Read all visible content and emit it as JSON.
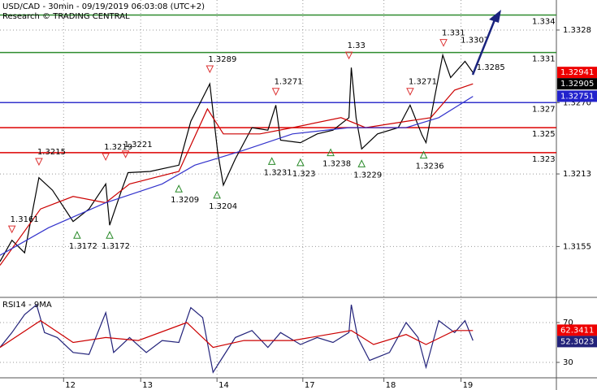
{
  "chart_data": [
    {
      "type": "line",
      "title": "USD/CAD - 30min - 09/19/2019 06:03:08 (UTC+2)",
      "subtitle": "Research © TRADING CENTRAL",
      "xlim": [
        0.2,
        7.2
      ],
      "ylim": [
        1.3115,
        1.3352
      ],
      "xticks": [
        {
          "value": 1,
          "label": "12"
        },
        {
          "value": 1.97,
          "label": "13"
        },
        {
          "value": 2.93,
          "label": "14"
        },
        {
          "value": 4.01,
          "label": "17"
        },
        {
          "value": 5.03,
          "label": "18"
        },
        {
          "value": 6.0,
          "label": "19"
        }
      ],
      "yticks": [
        1.3328,
        {
          "value": 1.327,
          "label": "1.3270"
        },
        1.3213,
        1.3155
      ],
      "grid": true,
      "series": [
        {
          "color": "#000000",
          "x": [
            0.2,
            0.35,
            0.51,
            0.69,
            0.86,
            1.12,
            1.32,
            1.53,
            1.58,
            1.73,
            1.81,
            2.09,
            2.45,
            2.6,
            2.84,
            2.94,
            3.01,
            3.16,
            3.37,
            3.57,
            3.67,
            3.73,
            3.98,
            4.19,
            4.39,
            4.59,
            4.62,
            4.68,
            4.75,
            4.95,
            5.21,
            5.36,
            5.51,
            5.56,
            5.67,
            5.77,
            5.87,
            6.05,
            6.15
          ],
          "values": [
            1.3143,
            1.316,
            1.315,
            1.321,
            1.32,
            1.3175,
            1.3185,
            1.3205,
            1.3172,
            1.32,
            1.3214,
            1.3215,
            1.322,
            1.3255,
            1.3285,
            1.323,
            1.3204,
            1.3225,
            1.325,
            1.3248,
            1.3268,
            1.324,
            1.3238,
            1.3245,
            1.3248,
            1.3258,
            1.3298,
            1.3258,
            1.3233,
            1.3245,
            1.325,
            1.3268,
            1.3244,
            1.3238,
            1.3275,
            1.3308,
            1.329,
            1.3303,
            1.3294
          ]
        },
        {
          "color": "#cc0000",
          "x": [
            0.2,
            0.71,
            1.12,
            1.53,
            1.83,
            2.45,
            2.81,
            3.01,
            3.47,
            3.88,
            4.49,
            4.8,
            5.31,
            5.62,
            5.92,
            6.15
          ],
          "values": [
            1.314,
            1.3185,
            1.3195,
            1.319,
            1.3205,
            1.3215,
            1.3265,
            1.3245,
            1.3245,
            1.325,
            1.3258,
            1.325,
            1.3255,
            1.3258,
            1.328,
            1.3285
          ]
        },
        {
          "color": "#3333cc",
          "x": [
            0.2,
            0.81,
            1.53,
            2.24,
            2.65,
            3.27,
            3.88,
            4.59,
            5.31,
            5.72,
            6.15
          ],
          "values": [
            1.3148,
            1.317,
            1.319,
            1.3205,
            1.322,
            1.3232,
            1.3245,
            1.325,
            1.325,
            1.3258,
            1.3275
          ]
        }
      ],
      "levels": [
        {
          "value": 1.334,
          "color": "#2e8b2e"
        },
        {
          "value": 1.331,
          "color": "#2e8b2e"
        },
        {
          "value": 1.327,
          "color": "#3333cc"
        },
        {
          "value": 1.325,
          "color": "#dd0000"
        },
        {
          "value": 1.323,
          "color": "#dd0000"
        }
      ],
      "annotations": [
        {
          "x": 0.35,
          "value": 1.3161,
          "kind": "high"
        },
        {
          "x": 0.69,
          "value": 1.3215,
          "kind": "high"
        },
        {
          "x": 1.17,
          "value": 1.3172,
          "kind": "low"
        },
        {
          "x": 1.53,
          "value": 1.3219,
          "kind": "high"
        },
        {
          "x": 1.58,
          "value": 1.3172,
          "kind": "low"
        },
        {
          "x": 1.78,
          "value": 1.3221,
          "kind": "high"
        },
        {
          "x": 2.45,
          "value": 1.3209,
          "kind": "low"
        },
        {
          "x": 2.84,
          "value": 1.3289,
          "kind": "high"
        },
        {
          "x": 2.93,
          "value": 1.3204,
          "kind": "low"
        },
        {
          "x": 3.62,
          "value": 1.3231,
          "kind": "low"
        },
        {
          "x": 3.67,
          "value": 1.3271,
          "kind": "high"
        },
        {
          "x": 3.98,
          "value": 1.323,
          "kind": "low"
        },
        {
          "x": 4.36,
          "value": 1.3238,
          "kind": "low"
        },
        {
          "x": 4.59,
          "value": 1.33,
          "kind": "high"
        },
        {
          "x": 4.75,
          "value": 1.3229,
          "kind": "low"
        },
        {
          "x": 5.36,
          "value": 1.3271,
          "kind": "high"
        },
        {
          "x": 5.53,
          "value": 1.3236,
          "kind": "low"
        },
        {
          "x": 5.78,
          "value": 1.331,
          "kind": "high"
        },
        {
          "x": 6.2,
          "value": 1.3307,
          "kind": "note"
        },
        {
          "x": 6.4,
          "value": 1.3285,
          "kind": "note"
        }
      ],
      "tags": [
        {
          "value": 1.32941,
          "color": "#ee0000"
        },
        {
          "value": 1.32905,
          "color": "#000000"
        },
        {
          "value": 1.32751,
          "color": "#2222cc"
        }
      ]
    },
    {
      "type": "line",
      "title": "RSI14 - 9MA",
      "xlim": [
        0.2,
        7.2
      ],
      "ylim": [
        14.5,
        94.5
      ],
      "yticks": [
        70,
        30
      ],
      "grid": true,
      "series": [
        {
          "color": "#22227a",
          "x": [
            0.2,
            0.35,
            0.51,
            0.66,
            0.76,
            0.92,
            1.12,
            1.32,
            1.53,
            1.63,
            1.83,
            2.04,
            2.24,
            2.45,
            2.6,
            2.75,
            2.88,
            2.96,
            3.16,
            3.37,
            3.57,
            3.73,
            3.98,
            4.19,
            4.39,
            4.59,
            4.62,
            4.7,
            4.85,
            5.1,
            5.31,
            5.46,
            5.56,
            5.72,
            5.92,
            6.05,
            6.15
          ],
          "values": [
            45,
            60,
            78,
            88,
            60,
            55,
            40,
            38,
            80,
            40,
            55,
            40,
            52,
            50,
            85,
            75,
            20,
            30,
            55,
            62,
            45,
            60,
            48,
            55,
            50,
            60,
            88,
            55,
            32,
            40,
            70,
            55,
            25,
            72,
            60,
            72,
            52
          ]
        },
        {
          "color": "#cc0000",
          "x": [
            0.2,
            0.71,
            1.12,
            1.53,
            1.94,
            2.55,
            2.88,
            3.27,
            3.88,
            4.62,
            4.9,
            5.31,
            5.56,
            5.92,
            6.15
          ],
          "values": [
            45,
            72,
            50,
            55,
            52,
            70,
            45,
            52,
            52,
            62,
            48,
            58,
            48,
            62,
            62
          ]
        }
      ],
      "tags": [
        {
          "value": 62.3411,
          "color": "#ee0000"
        },
        {
          "value": 52.3023,
          "color": "#22227a"
        }
      ]
    }
  ]
}
